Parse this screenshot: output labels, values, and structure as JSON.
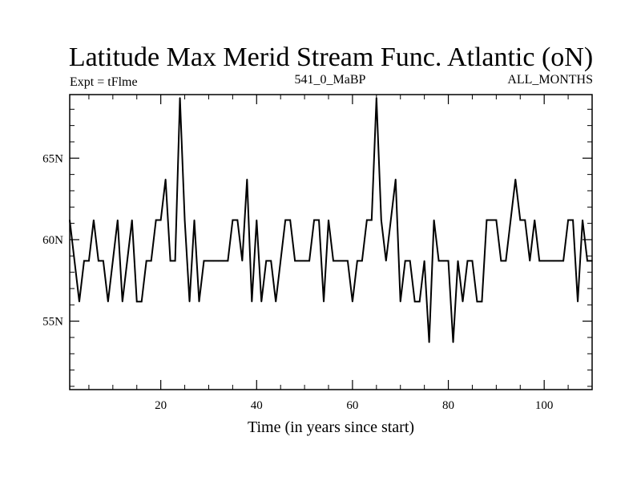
{
  "chart_data": {
    "type": "line",
    "title": "Latitude Max Merid Stream Func. Atlantic (oN)",
    "subtitle_left": "Expt = tFlme",
    "subtitle_center": "541_0_MaBP",
    "subtitle_right": "ALL_MONTHS",
    "xlabel": "Time (in years since start)",
    "ylabel": "",
    "xlim": [
      1,
      110
    ],
    "ylim": [
      50.8,
      68.9
    ],
    "x_ticks": [
      20,
      40,
      60,
      80,
      100
    ],
    "x_tick_labels": [
      "20",
      "40",
      "60",
      "80",
      "100"
    ],
    "y_ticks": [
      55,
      60,
      65
    ],
    "y_tick_labels": [
      "55N",
      "60N",
      "65N"
    ],
    "grid": false,
    "colors": {
      "line": "#000000",
      "axes": "#000000",
      "background": "#ffffff"
    },
    "series": [
      {
        "name": "Latitude Max",
        "x": [
          1,
          2,
          3,
          4,
          5,
          6,
          7,
          8,
          9,
          10,
          11,
          12,
          13,
          14,
          15,
          16,
          17,
          18,
          19,
          20,
          21,
          22,
          23,
          24,
          25,
          26,
          27,
          28,
          29,
          30,
          31,
          32,
          33,
          34,
          35,
          36,
          37,
          38,
          39,
          40,
          41,
          42,
          43,
          44,
          45,
          46,
          47,
          48,
          49,
          50,
          51,
          52,
          53,
          54,
          55,
          56,
          57,
          58,
          59,
          60,
          61,
          62,
          63,
          64,
          65,
          66,
          67,
          68,
          69,
          70,
          71,
          72,
          73,
          74,
          75,
          76,
          77,
          78,
          79,
          80,
          81,
          82,
          83,
          84,
          85,
          86,
          87,
          88,
          89,
          90,
          91,
          92,
          93,
          94,
          95,
          96,
          97,
          98,
          99,
          100,
          101,
          102,
          103,
          104,
          105,
          106,
          107,
          108,
          109,
          110
        ],
        "values": [
          61.2,
          58.7,
          56.2,
          58.7,
          58.7,
          61.2,
          58.7,
          58.7,
          56.2,
          58.7,
          61.2,
          56.2,
          58.7,
          61.2,
          56.2,
          56.2,
          58.7,
          58.7,
          61.2,
          61.2,
          63.7,
          58.7,
          58.7,
          68.7,
          61.2,
          56.2,
          61.2,
          56.2,
          58.7,
          58.7,
          58.7,
          58.7,
          58.7,
          58.7,
          61.2,
          61.2,
          58.7,
          63.7,
          56.2,
          61.2,
          56.2,
          58.7,
          58.7,
          56.2,
          58.7,
          61.2,
          61.2,
          58.7,
          58.7,
          58.7,
          58.7,
          61.2,
          61.2,
          56.2,
          61.2,
          58.7,
          58.7,
          58.7,
          58.7,
          56.2,
          58.7,
          58.7,
          61.2,
          61.2,
          68.7,
          61.2,
          58.7,
          61.2,
          63.7,
          56.2,
          58.7,
          58.7,
          56.2,
          56.2,
          58.7,
          53.7,
          61.2,
          58.7,
          58.7,
          58.7,
          53.7,
          58.7,
          56.2,
          58.7,
          58.7,
          56.2,
          56.2,
          61.2,
          61.2,
          61.2,
          58.7,
          58.7,
          61.2,
          63.7,
          61.2,
          61.2,
          58.7,
          61.2,
          58.7,
          58.7,
          58.7,
          58.7,
          58.7,
          58.7,
          61.2,
          61.2,
          56.2,
          61.2,
          58.7,
          58.7
        ]
      }
    ]
  }
}
